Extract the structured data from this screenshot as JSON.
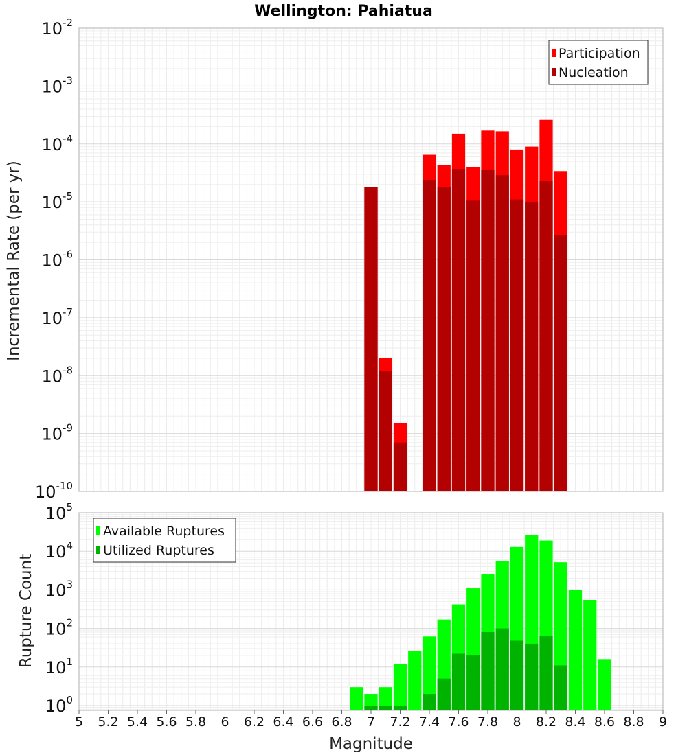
{
  "chart_data": [
    {
      "type": "bar",
      "title": "Wellington: Pahiatua",
      "xlabel": "Magnitude",
      "ylabel": "Incremental Rate (per yr)",
      "yscale": "log",
      "ylim": [
        1e-10,
        0.01
      ],
      "xlim": [
        5,
        9
      ],
      "bin_width": 0.1,
      "legend_position": "top-right",
      "x": [
        7.0,
        7.1,
        7.2,
        7.4,
        7.5,
        7.6,
        7.7,
        7.8,
        7.9,
        8.0,
        8.1,
        8.2,
        8.3
      ],
      "series": [
        {
          "name": "Participation",
          "color": "#ff0000",
          "values": [
            1.8e-05,
            2e-08,
            1.5e-09,
            6.5e-05,
            4.3e-05,
            0.00015,
            4e-05,
            0.00017,
            0.000165,
            8e-05,
            9e-05,
            0.00026,
            3.4e-05
          ]
        },
        {
          "name": "Nucleation",
          "color": "#b30000",
          "values": [
            1.8e-05,
            1.2e-08,
            7e-10,
            2.4e-05,
            1.8e-05,
            3.7e-05,
            1.05e-05,
            3.6e-05,
            2.9e-05,
            1.1e-05,
            1e-05,
            2.3e-05,
            2.7e-06
          ]
        }
      ]
    },
    {
      "type": "bar",
      "title": "",
      "xlabel": "Magnitude",
      "ylabel": "Rupture Count",
      "yscale": "log",
      "ylim": [
        0.75,
        100000.0
      ],
      "xlim": [
        5,
        9
      ],
      "bin_width": 0.1,
      "legend_position": "top-left",
      "x": [
        6.9,
        7.0,
        7.1,
        7.2,
        7.3,
        7.4,
        7.5,
        7.6,
        7.7,
        7.8,
        7.9,
        8.0,
        8.1,
        8.2,
        8.3,
        8.4,
        8.5,
        8.6
      ],
      "series": [
        {
          "name": "Available Ruptures",
          "color": "#00ff00",
          "values": [
            3,
            2,
            3,
            12,
            26,
            62,
            170,
            420,
            1100,
            2500,
            5500,
            13000,
            26000,
            19000,
            5200,
            1000,
            550,
            16
          ]
        },
        {
          "name": "Utilized Ruptures",
          "color": "#00b300",
          "values": [
            0,
            1,
            1,
            1,
            0,
            2,
            5,
            22,
            20,
            80,
            100,
            48,
            40,
            65,
            11,
            0,
            0,
            0
          ]
        }
      ]
    }
  ],
  "x_ticks": [
    "5",
    "5.2",
    "5.4",
    "5.6",
    "5.8",
    "6",
    "6.2",
    "6.4",
    "6.6",
    "6.8",
    "7",
    "7.2",
    "7.4",
    "7.6",
    "7.8",
    "8",
    "8.2",
    "8.4",
    "8.6",
    "8.8",
    "9"
  ],
  "top_y_ticks": [
    {
      "base": "10",
      "exp": "-2"
    },
    {
      "base": "10",
      "exp": "-3"
    },
    {
      "base": "10",
      "exp": "-4"
    },
    {
      "base": "10",
      "exp": "-5"
    },
    {
      "base": "10",
      "exp": "-6"
    },
    {
      "base": "10",
      "exp": "-7"
    },
    {
      "base": "10",
      "exp": "-8"
    },
    {
      "base": "10",
      "exp": "-9"
    },
    {
      "base": "10",
      "exp": "-10"
    }
  ],
  "bottom_y_ticks": [
    {
      "base": "10",
      "exp": "5"
    },
    {
      "base": "10",
      "exp": "4"
    },
    {
      "base": "10",
      "exp": "3"
    },
    {
      "base": "10",
      "exp": "2"
    },
    {
      "base": "10",
      "exp": "1"
    },
    {
      "base": "10",
      "exp": "0"
    }
  ]
}
